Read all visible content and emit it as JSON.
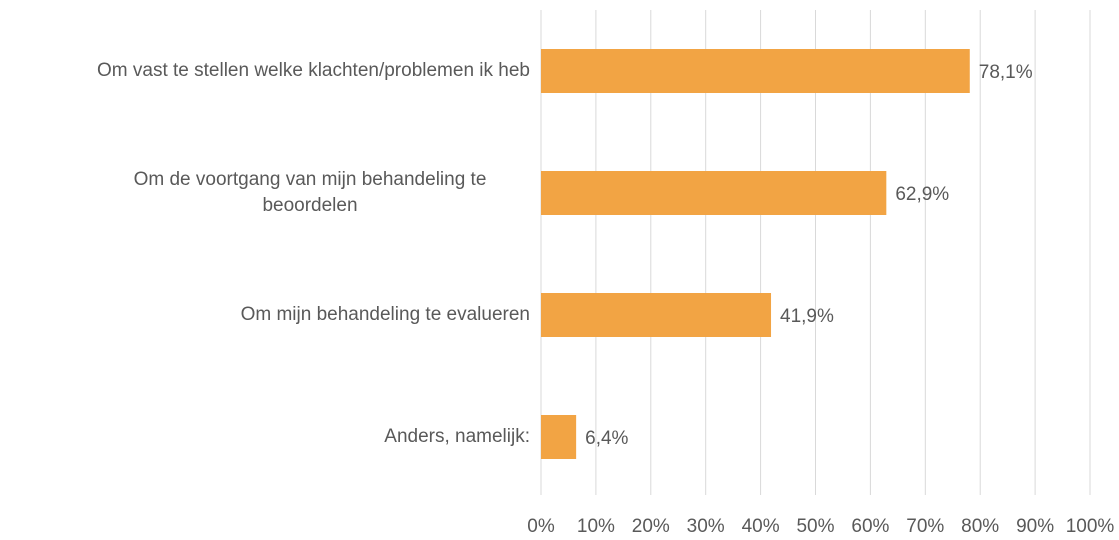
{
  "chart_data": {
    "type": "bar",
    "orientation": "horizontal",
    "categories": [
      "Om vast te stellen welke klachten/problemen ik heb",
      "Om de voortgang van mijn behandeling te beoordelen",
      "Om mijn behandeling te evalueren",
      "Anders, namelijk:"
    ],
    "values": [
      78.1,
      62.9,
      41.9,
      6.4
    ],
    "value_labels": [
      "78,1%",
      "62,9%",
      "41,9%",
      "6,4%"
    ],
    "color": "#f2a444",
    "xlim": [
      0,
      100
    ],
    "xticks": [
      {
        "value": 0,
        "label": "0%"
      },
      {
        "value": 10,
        "label": "10%"
      },
      {
        "value": 20,
        "label": "20%"
      },
      {
        "value": 30,
        "label": "30%"
      },
      {
        "value": 40,
        "label": "40%"
      },
      {
        "value": 50,
        "label": "50%"
      },
      {
        "value": 60,
        "label": "60%"
      },
      {
        "value": 70,
        "label": "70%"
      },
      {
        "value": 80,
        "label": "80%"
      },
      {
        "value": 90,
        "label": "90%"
      },
      {
        "value": 100,
        "label": "100%"
      }
    ],
    "grid": true
  }
}
